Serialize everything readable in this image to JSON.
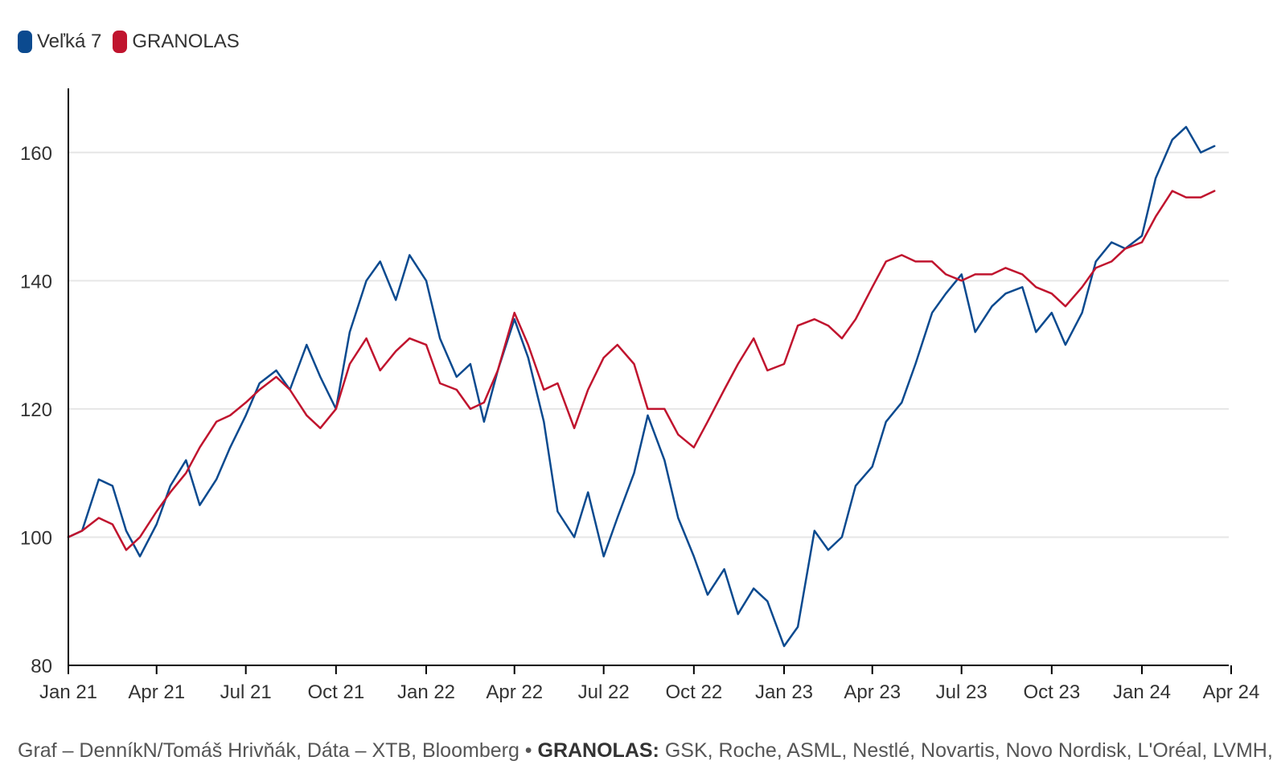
{
  "legend": {
    "items": [
      {
        "label": "Veľká 7",
        "color": "#0b4a8f"
      },
      {
        "label": "GRANOLAS",
        "color": "#c0142e"
      }
    ]
  },
  "footer": {
    "source": "Graf – DenníkN/Tomáš Hrivňák, Dáta – XTB, Bloomberg • ",
    "granolas_label": "GRANOLAS:",
    "granolas_list": " GSK, Roche, ASML, Nestlé, Novartis, Novo Nordisk, L'Oréal, LVMH,"
  },
  "chart_data": {
    "type": "line",
    "title": "",
    "xlabel": "",
    "ylabel": "",
    "ylim": [
      80,
      170
    ],
    "yticks": [
      80,
      100,
      120,
      140,
      160
    ],
    "grid": true,
    "legend_position": "top-left",
    "x_ticks": [
      {
        "label": "Jan 21",
        "date": "2021-01-01"
      },
      {
        "label": "Apr 21",
        "date": "2021-04-01"
      },
      {
        "label": "Jul 21",
        "date": "2021-07-01"
      },
      {
        "label": "Oct 21",
        "date": "2021-10-01"
      },
      {
        "label": "Jan 22",
        "date": "2022-01-01"
      },
      {
        "label": "Apr 22",
        "date": "2022-04-01"
      },
      {
        "label": "Jul 22",
        "date": "2022-07-01"
      },
      {
        "label": "Oct 22",
        "date": "2022-10-01"
      },
      {
        "label": "Jan 23",
        "date": "2023-01-01"
      },
      {
        "label": "Apr 23",
        "date": "2023-04-01"
      },
      {
        "label": "Jul 23",
        "date": "2023-07-01"
      },
      {
        "label": "Oct 23",
        "date": "2023-10-01"
      },
      {
        "label": "Jan 24",
        "date": "2024-01-01"
      },
      {
        "label": "Apr 24",
        "date": "2024-04-01"
      }
    ],
    "x": [
      "2021-01-01",
      "2021-01-15",
      "2021-02-01",
      "2021-02-15",
      "2021-03-01",
      "2021-03-15",
      "2021-04-01",
      "2021-04-15",
      "2021-05-01",
      "2021-05-15",
      "2021-06-01",
      "2021-06-15",
      "2021-07-01",
      "2021-07-15",
      "2021-08-01",
      "2021-08-15",
      "2021-09-01",
      "2021-09-15",
      "2021-10-01",
      "2021-10-15",
      "2021-11-01",
      "2021-11-15",
      "2021-12-01",
      "2021-12-15",
      "2022-01-01",
      "2022-01-15",
      "2022-02-01",
      "2022-02-15",
      "2022-03-01",
      "2022-03-15",
      "2022-04-01",
      "2022-04-15",
      "2022-05-01",
      "2022-05-15",
      "2022-06-01",
      "2022-06-15",
      "2022-07-01",
      "2022-07-15",
      "2022-08-01",
      "2022-08-15",
      "2022-09-01",
      "2022-09-15",
      "2022-10-01",
      "2022-10-15",
      "2022-11-01",
      "2022-11-15",
      "2022-12-01",
      "2022-12-15",
      "2023-01-01",
      "2023-01-15",
      "2023-02-01",
      "2023-02-15",
      "2023-03-01",
      "2023-03-15",
      "2023-04-01",
      "2023-04-15",
      "2023-05-01",
      "2023-05-15",
      "2023-06-01",
      "2023-06-15",
      "2023-07-01",
      "2023-07-15",
      "2023-08-01",
      "2023-08-15",
      "2023-09-01",
      "2023-09-15",
      "2023-10-01",
      "2023-10-15",
      "2023-11-01",
      "2023-11-15",
      "2023-12-01",
      "2023-12-15",
      "2024-01-01",
      "2024-01-15",
      "2024-02-01",
      "2024-02-15",
      "2024-03-01",
      "2024-03-15"
    ],
    "series": [
      {
        "name": "Veľká 7",
        "color": "#0b4a8f",
        "values": [
          100,
          101,
          109,
          108,
          101,
          97,
          102,
          108,
          112,
          105,
          109,
          114,
          119,
          124,
          126,
          123,
          130,
          125,
          120,
          132,
          140,
          143,
          137,
          144,
          140,
          131,
          125,
          127,
          118,
          126,
          134,
          128,
          118,
          104,
          100,
          107,
          97,
          103,
          110,
          119,
          112,
          103,
          97,
          91,
          95,
          88,
          92,
          90,
          83,
          86,
          101,
          98,
          100,
          108,
          111,
          118,
          121,
          127,
          135,
          138,
          141,
          132,
          136,
          138,
          139,
          132,
          135,
          130,
          135,
          143,
          146,
          145,
          147,
          156,
          162,
          164,
          160,
          161
        ]
      },
      {
        "name": "GRANOLAS",
        "color": "#c0142e",
        "values": [
          100,
          101,
          103,
          102,
          98,
          100,
          104,
          107,
          110,
          114,
          118,
          119,
          121,
          123,
          125,
          123,
          119,
          117,
          120,
          127,
          131,
          126,
          129,
          131,
          130,
          124,
          123,
          120,
          121,
          126,
          135,
          130,
          123,
          124,
          117,
          123,
          128,
          130,
          127,
          120,
          120,
          116,
          114,
          118,
          123,
          127,
          131,
          126,
          127,
          133,
          134,
          133,
          131,
          134,
          139,
          143,
          144,
          143,
          143,
          141,
          140,
          141,
          141,
          142,
          141,
          139,
          138,
          136,
          139,
          142,
          143,
          145,
          146,
          150,
          154,
          153,
          153,
          154
        ]
      }
    ]
  }
}
